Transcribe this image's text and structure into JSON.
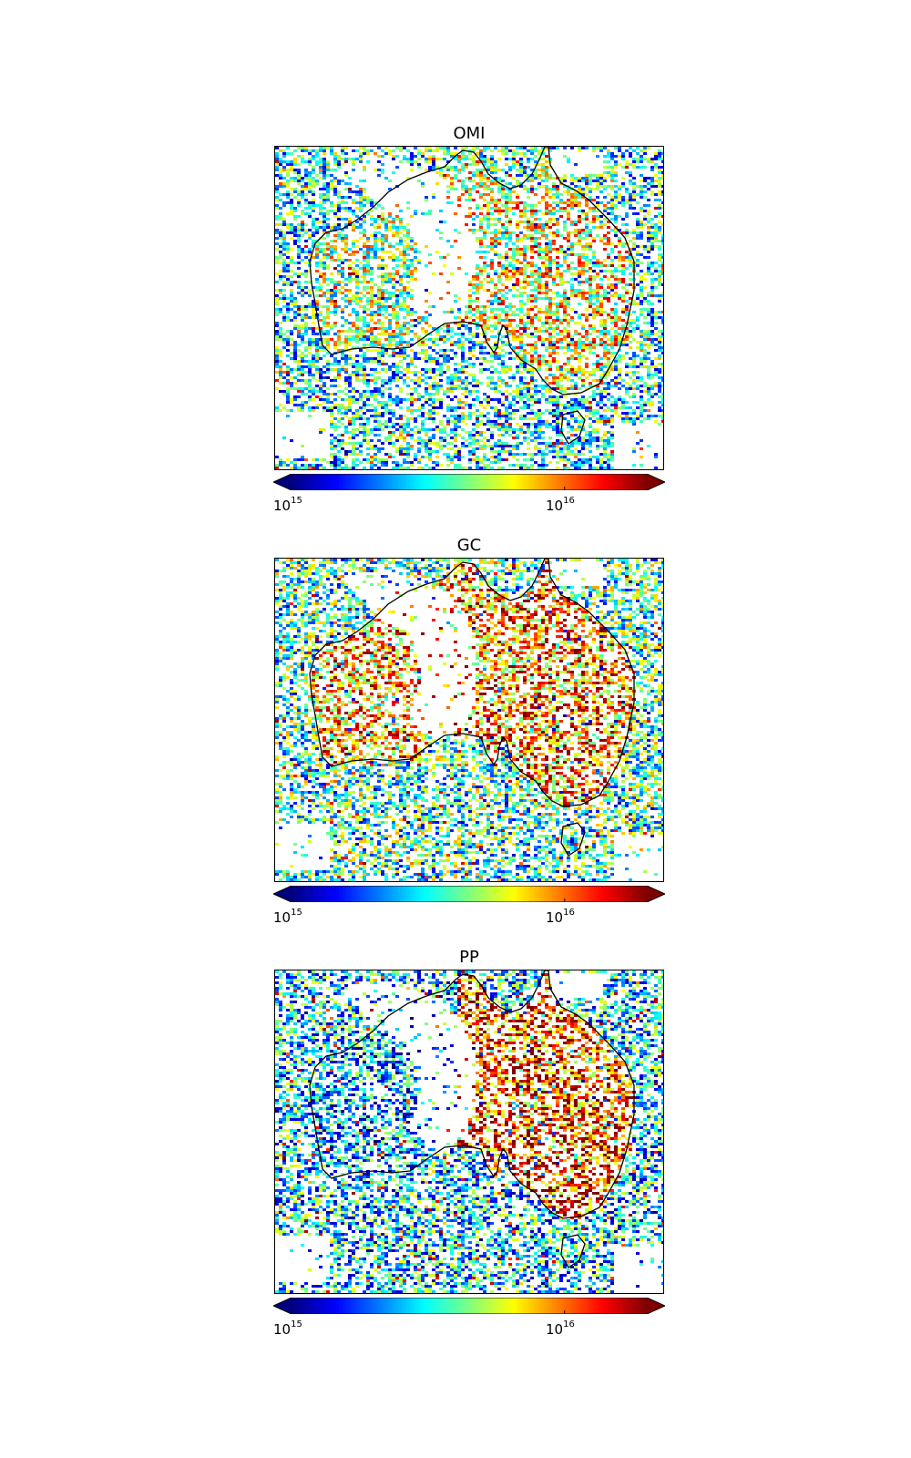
{
  "chart_data": [
    {
      "type": "heatmap",
      "title": "OMI",
      "colorbar": {
        "scale": "log",
        "range": [
          1000000000000000.0,
          2e+16
        ],
        "extend": "both",
        "colormap": "jet",
        "ticks": [
          {
            "base": "10",
            "exp": "15",
            "value": 1000000000000000.0
          },
          {
            "base": "10",
            "exp": "16",
            "value": 1e+16
          }
        ]
      },
      "map_region": "Australia",
      "xlabel": "",
      "ylabel": "",
      "grid": false
    },
    {
      "type": "heatmap",
      "title": "GC",
      "colorbar": {
        "scale": "log",
        "range": [
          1000000000000000.0,
          2e+16
        ],
        "extend": "both",
        "colormap": "jet",
        "ticks": [
          {
            "base": "10",
            "exp": "15",
            "value": 1000000000000000.0
          },
          {
            "base": "10",
            "exp": "16",
            "value": 1e+16
          }
        ]
      },
      "map_region": "Australia",
      "xlabel": "",
      "ylabel": "",
      "grid": false
    },
    {
      "type": "heatmap",
      "title": "PP",
      "colorbar": {
        "scale": "log",
        "range": [
          1000000000000000.0,
          2e+16
        ],
        "extend": "both",
        "colormap": "jet",
        "ticks": [
          {
            "base": "10",
            "exp": "15",
            "value": 1000000000000000.0
          },
          {
            "base": "10",
            "exp": "16",
            "value": 1e+16
          }
        ]
      },
      "map_region": "Australia",
      "xlabel": "",
      "ylabel": "",
      "grid": false
    }
  ],
  "colors": {
    "coastline": "#000000",
    "colormap_stops": [
      "#00007f",
      "#0000ff",
      "#007fff",
      "#00ffff",
      "#7fff7f",
      "#ffff00",
      "#ff7f00",
      "#ff0000",
      "#7f0000"
    ]
  }
}
